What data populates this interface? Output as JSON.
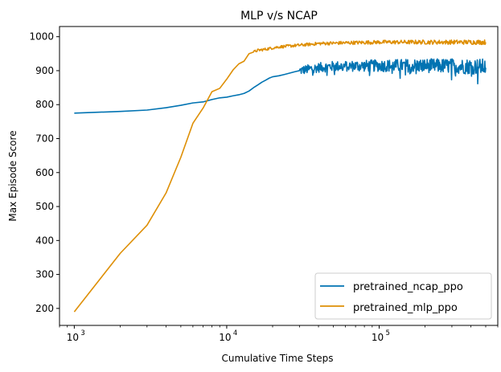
{
  "chart_data": {
    "type": "line",
    "title": "MLP v/s NCAP",
    "xlabel": "Cumulative Time Steps",
    "ylabel": "Max Episode Score",
    "xscale": "log",
    "xlim": [
      800,
      600000
    ],
    "ylim": [
      150,
      1030
    ],
    "x_ticks": [
      {
        "value": 1000,
        "base": "10",
        "exp": "3"
      },
      {
        "value": 10000,
        "base": "10",
        "exp": "4"
      },
      {
        "value": 100000,
        "base": "10",
        "exp": "5"
      }
    ],
    "y_ticks": [
      200,
      300,
      400,
      500,
      600,
      700,
      800,
      900,
      1000
    ],
    "grid": false,
    "legend_position": "lower right",
    "series": [
      {
        "name": "pretrained_ncap_ppo",
        "color": "#0173b2",
        "x": [
          1000,
          2000,
          3000,
          4000,
          5000,
          6000,
          7000,
          8000,
          9000,
          10000,
          11000,
          12000,
          13000,
          14000,
          15000,
          16000,
          17000,
          18000,
          19000,
          20000,
          22000,
          24000,
          26000,
          28000,
          30000,
          33000,
          36000,
          40000,
          45000,
          50000,
          60000,
          70000,
          80000,
          100000,
          120000,
          150000,
          200000,
          250000,
          300000,
          350000,
          400000,
          450000,
          500000
        ],
        "y": [
          775,
          780,
          784,
          791,
          798,
          805,
          808,
          815,
          820,
          822,
          826,
          829,
          833,
          840,
          850,
          858,
          866,
          872,
          878,
          882,
          885,
          889,
          893,
          897,
          900,
          903,
          906,
          909,
          911,
          913,
          913,
          914,
          914,
          915,
          915,
          915,
          915,
          914,
          914,
          913,
          913,
          912,
          911
        ],
        "noise_start": 30000,
        "noise_amp": 24
      },
      {
        "name": "pretrained_mlp_ppo",
        "color": "#de8f05",
        "x": [
          1000,
          2000,
          3000,
          4000,
          5000,
          6000,
          7000,
          8000,
          9000,
          10000,
          11000,
          12000,
          13000,
          14000,
          15000,
          16000,
          18000,
          20000,
          22000,
          25000,
          28000,
          32000,
          36000,
          40000,
          50000,
          60000,
          80000,
          100000,
          150000,
          200000,
          300000,
          400000,
          500000
        ],
        "y": [
          190,
          362,
          445,
          540,
          645,
          745,
          790,
          838,
          848,
          875,
          902,
          920,
          928,
          950,
          955,
          960,
          963,
          967,
          970,
          972,
          974,
          976,
          978,
          980,
          981,
          982,
          983,
          984,
          984,
          984,
          984,
          984,
          984
        ],
        "noise_start": 15000,
        "noise_amp": 7
      }
    ]
  }
}
